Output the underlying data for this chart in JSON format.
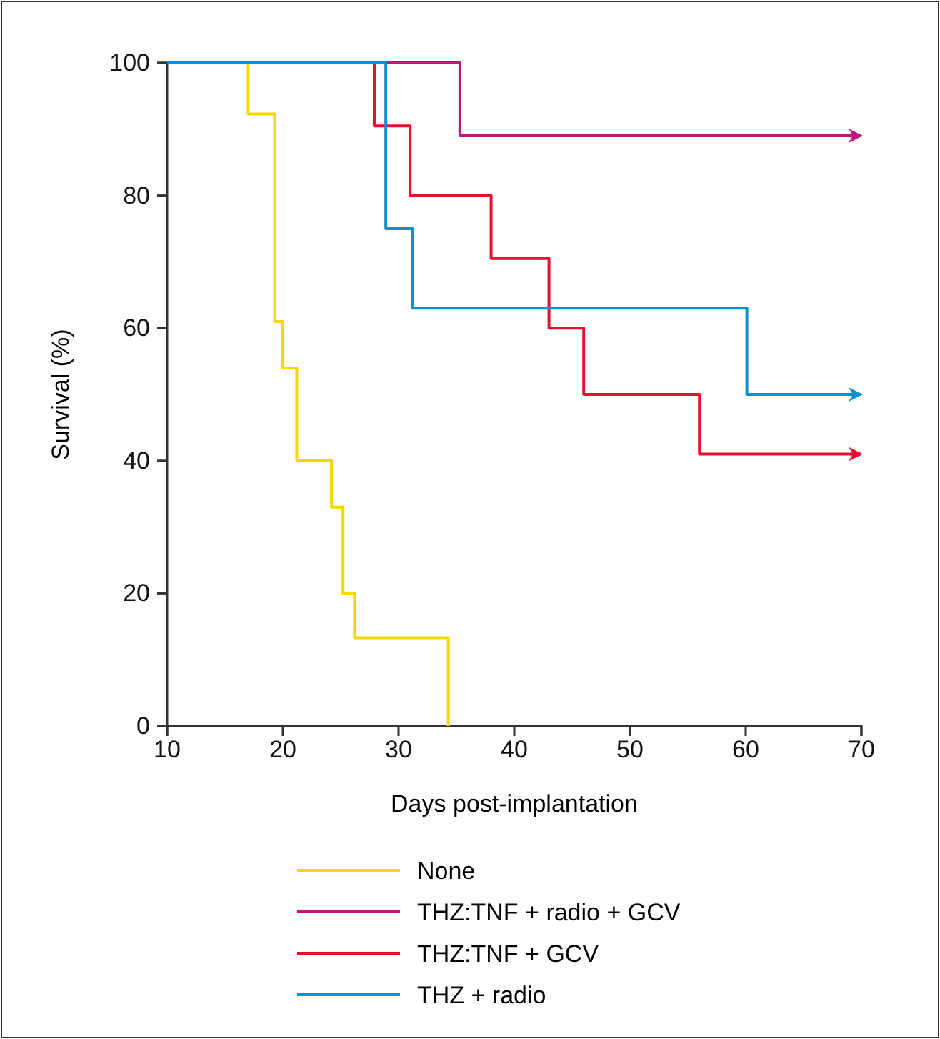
{
  "chart_data": {
    "type": "step",
    "xlabel": "Days post-implantation",
    "ylabel": "Survival (%)",
    "xlim": [
      10,
      70
    ],
    "ylim": [
      0,
      100
    ],
    "xticks": [
      10,
      20,
      30,
      40,
      50,
      60,
      70
    ],
    "yticks": [
      0,
      20,
      40,
      60,
      80,
      100
    ],
    "grid": false,
    "legend": "bottom",
    "marker": "none",
    "line_style": "solid",
    "series": [
      {
        "name": "None",
        "color": "#f5d800",
        "x": [
          10,
          17,
          19.3,
          20,
          21.2,
          24.2,
          25.2,
          26.2,
          34.3
        ],
        "values": [
          100,
          92.3,
          61,
          54,
          40,
          33,
          20,
          13.3,
          0
        ]
      },
      {
        "name": "THZ:TNF + radio + GCV",
        "color": "#c0147f",
        "x": [
          10,
          35.3,
          70
        ],
        "values": [
          100,
          89,
          89
        ]
      },
      {
        "name": "THZ:TNF + GCV",
        "color": "#e4112f",
        "x": [
          10,
          27.9,
          31,
          38,
          43,
          46,
          56,
          70
        ],
        "values": [
          100,
          90.5,
          80,
          70.5,
          60,
          50,
          41,
          41
        ]
      },
      {
        "name": "THZ + radio",
        "color": "#0d8ed6",
        "x": [
          10,
          28.9,
          31.2,
          60.1,
          70
        ],
        "values": [
          100,
          75,
          63,
          50,
          50
        ]
      }
    ]
  }
}
